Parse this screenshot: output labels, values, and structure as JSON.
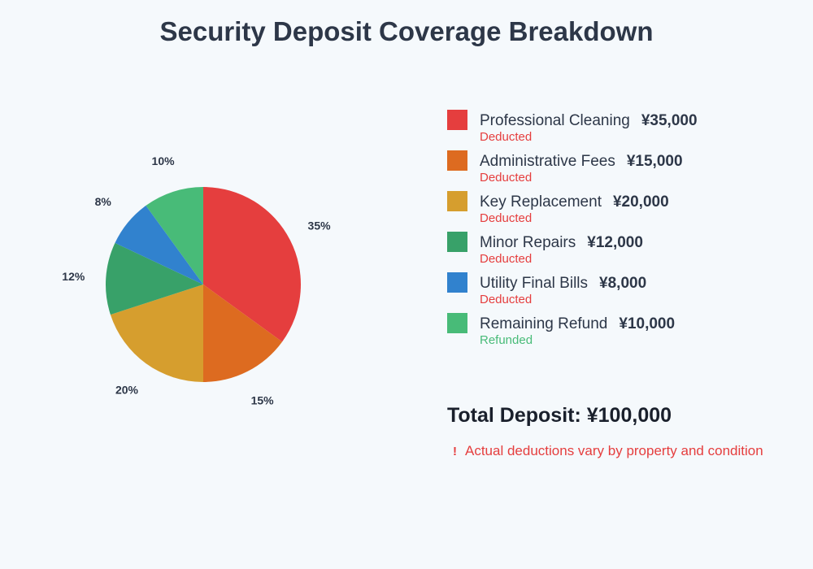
{
  "chart_data": {
    "type": "pie",
    "title": "Security Deposit Coverage Breakdown",
    "slices": [
      {
        "name": "Professional Cleaning",
        "value": 35000,
        "percent": 35,
        "amount": "¥35,000",
        "status": "Deducted",
        "color": "#e53e3e",
        "status_color": "#e53e3e"
      },
      {
        "name": "Administrative Fees",
        "value": 15000,
        "percent": 15,
        "amount": "¥15,000",
        "status": "Deducted",
        "color": "#dd6b20",
        "status_color": "#e53e3e"
      },
      {
        "name": "Key Replacement",
        "value": 20000,
        "percent": 20,
        "amount": "¥20,000",
        "status": "Deducted",
        "color": "#d69e2e",
        "status_color": "#e53e3e"
      },
      {
        "name": "Minor Repairs",
        "value": 12000,
        "percent": 12,
        "amount": "¥12,000",
        "status": "Deducted",
        "color": "#38a169",
        "status_color": "#e53e3e"
      },
      {
        "name": "Utility Final Bills",
        "value": 8000,
        "percent": 8,
        "amount": "¥8,000",
        "status": "Deducted",
        "color": "#3182ce",
        "status_color": "#e53e3e"
      },
      {
        "name": "Remaining Refund",
        "value": 10000,
        "percent": 10,
        "amount": "¥10,000",
        "status": "Refunded",
        "color": "#48bb78",
        "status_color": "#48bb78"
      }
    ],
    "legend_placement": "right"
  },
  "total": "Total Deposit: ¥100,000",
  "note": {
    "icon": "exclamation-icon",
    "mark": "!",
    "text": "Actual deductions vary by property and condition"
  }
}
